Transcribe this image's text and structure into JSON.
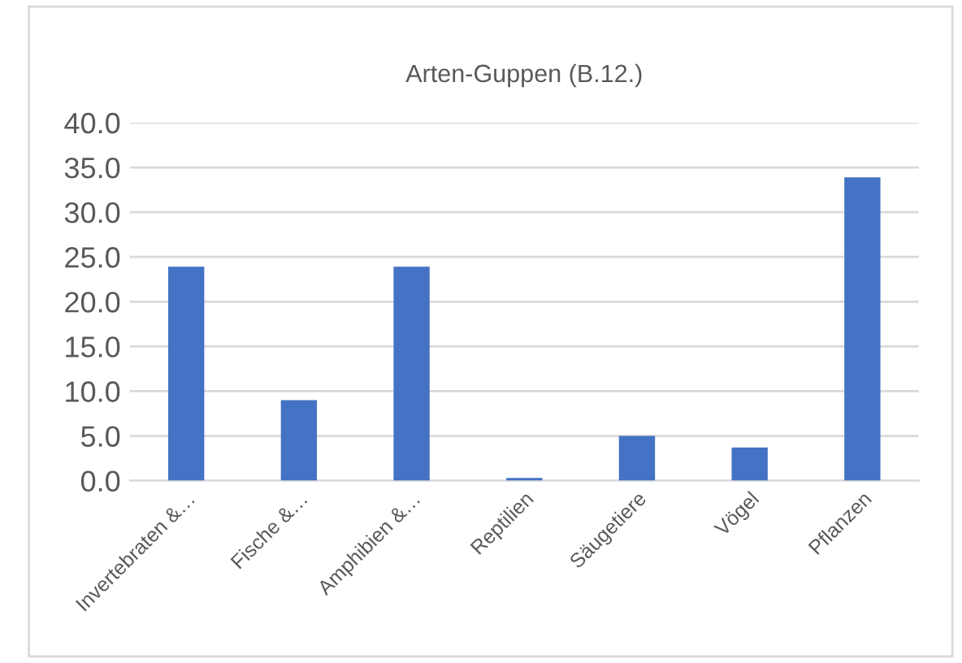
{
  "chart_data": {
    "type": "bar",
    "title": "Arten-Guppen (B.12.)",
    "categories": [
      "Invertebraten &…",
      "Fische &…",
      "Amphibien &…",
      "Reptilien",
      "Säugetiere",
      "Vögel",
      "Pflanzen"
    ],
    "values": [
      23.9,
      9.0,
      23.9,
      0.3,
      5.0,
      3.7,
      33.9
    ],
    "color": "#4472c4",
    "ylim": [
      0,
      40
    ],
    "yticks": [
      {
        "value": 0,
        "label": "0.0"
      },
      {
        "value": 5,
        "label": "5.0"
      },
      {
        "value": 10,
        "label": "10.0"
      },
      {
        "value": 15,
        "label": "15.0"
      },
      {
        "value": 20,
        "label": "20.0"
      },
      {
        "value": 25,
        "label": "25.0"
      },
      {
        "value": 30,
        "label": "30.0"
      },
      {
        "value": 35,
        "label": "35.0"
      },
      {
        "value": 40,
        "label": "40.0"
      }
    ],
    "grid": "y"
  }
}
